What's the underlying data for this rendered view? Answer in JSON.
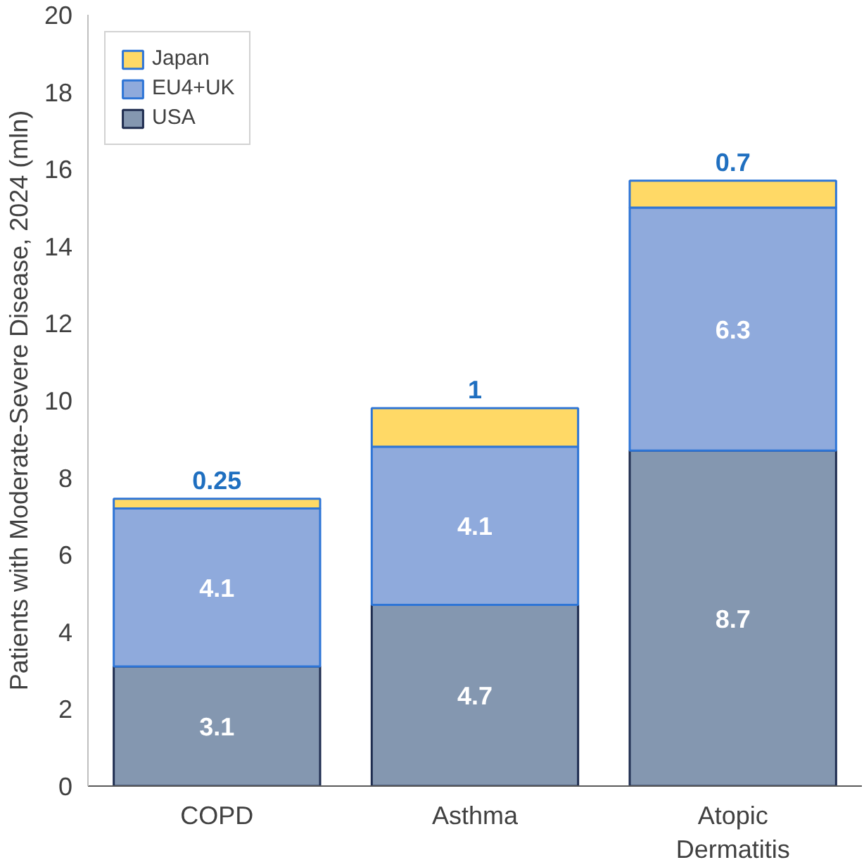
{
  "chart_data": {
    "type": "bar",
    "stacked": true,
    "ylabel": "Patients with Moderate-Severe Disease, 2024 (mln)",
    "categories": [
      "COPD",
      "Asthma",
      "Atopic Dermatitis"
    ],
    "series": [
      {
        "name": "USA",
        "color": "#8497b0",
        "values": [
          3.1,
          4.7,
          8.7
        ]
      },
      {
        "name": "EU4+UK",
        "color": "#8faadc",
        "values": [
          4.1,
          4.1,
          6.3
        ]
      },
      {
        "name": "Japan",
        "color": "#ffd966",
        "values": [
          0.25,
          1,
          0.7
        ]
      }
    ],
    "ylim": [
      0,
      20
    ],
    "yticks": [
      0,
      2,
      4,
      6,
      8,
      10,
      12,
      14,
      16,
      18,
      20
    ],
    "grid": false,
    "legend": "top left",
    "data_labels": true
  }
}
